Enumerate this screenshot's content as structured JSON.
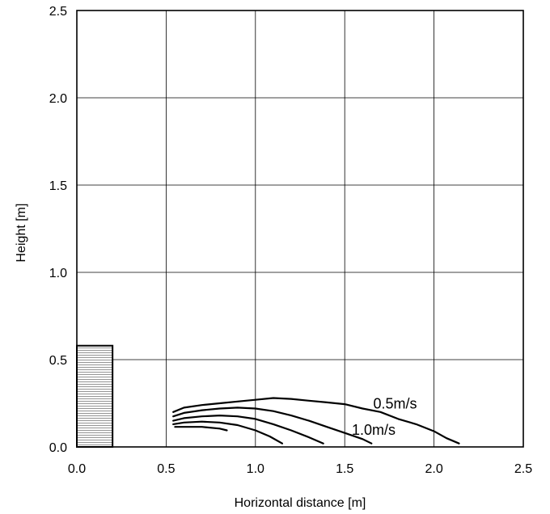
{
  "chart_data": {
    "type": "line",
    "title": "",
    "xlabel": "Horizontal distance [m]",
    "ylabel": "Height [m]",
    "xlim": [
      0.0,
      2.5
    ],
    "ylim": [
      0.0,
      2.5
    ],
    "x_ticks": [
      "0.0",
      "0.5",
      "1.0",
      "1.5",
      "2.0",
      "2.5"
    ],
    "y_ticks": [
      "0.0",
      "0.5",
      "1.0",
      "1.5",
      "2.0",
      "2.5"
    ],
    "grid": true,
    "legend": "none",
    "outlet": {
      "x": [
        0.0,
        0.2
      ],
      "y": [
        0.0,
        0.58
      ],
      "fill": "horizontal hatch"
    },
    "series": [
      {
        "x": [
          0.54,
          0.6,
          0.7,
          0.8,
          0.9,
          1.0,
          1.1,
          1.2,
          1.3,
          1.4,
          1.5,
          1.6,
          1.7,
          1.8,
          1.9,
          2.0,
          2.07,
          2.14
        ],
        "y": [
          0.2,
          0.225,
          0.24,
          0.25,
          0.26,
          0.27,
          0.28,
          0.275,
          0.265,
          0.255,
          0.245,
          0.22,
          0.2,
          0.16,
          0.13,
          0.09,
          0.05,
          0.02
        ]
      },
      {
        "x": [
          0.54,
          0.6,
          0.7,
          0.8,
          0.9,
          1.0,
          1.1,
          1.2,
          1.3,
          1.4,
          1.5,
          1.6,
          1.65
        ],
        "y": [
          0.175,
          0.195,
          0.21,
          0.22,
          0.225,
          0.22,
          0.205,
          0.18,
          0.15,
          0.115,
          0.08,
          0.045,
          0.02
        ]
      },
      {
        "x": [
          0.54,
          0.6,
          0.7,
          0.8,
          0.9,
          1.0,
          1.1,
          1.2,
          1.3,
          1.38
        ],
        "y": [
          0.15,
          0.165,
          0.175,
          0.18,
          0.175,
          0.16,
          0.13,
          0.095,
          0.055,
          0.02
        ]
      },
      {
        "x": [
          0.54,
          0.6,
          0.7,
          0.8,
          0.9,
          1.0,
          1.08,
          1.15
        ],
        "y": [
          0.13,
          0.14,
          0.145,
          0.14,
          0.125,
          0.095,
          0.06,
          0.02
        ]
      },
      {
        "x": [
          0.55,
          0.6,
          0.7,
          0.8,
          0.84
        ],
        "y": [
          0.115,
          0.115,
          0.115,
          0.105,
          0.095
        ]
      }
    ],
    "annotations": [
      {
        "text": "0.5m/s",
        "x": 1.66,
        "y": 0.22
      },
      {
        "text": "1.0m/s",
        "x": 1.54,
        "y": 0.07
      }
    ]
  }
}
